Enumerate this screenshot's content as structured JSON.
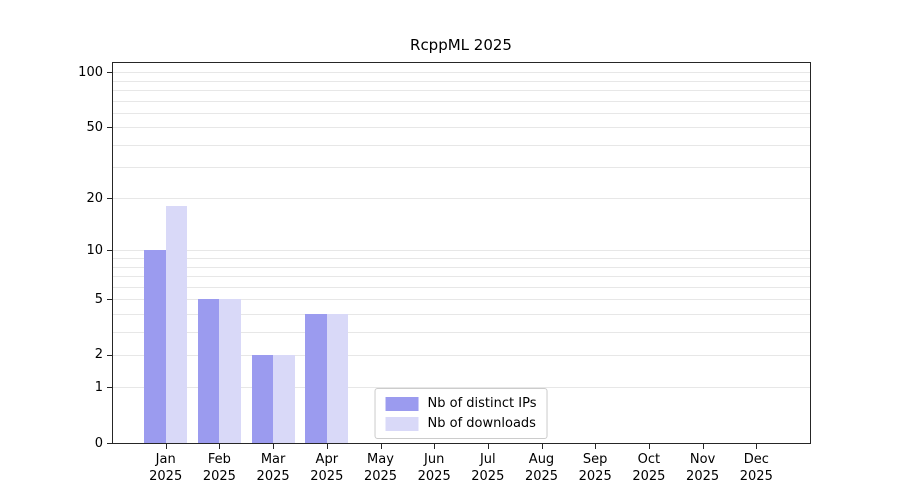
{
  "title": "RcppML 2025",
  "colors": {
    "grid": "#e7e7e7",
    "axis": "#262626",
    "background": "#ffffff",
    "legend_border": "#cccccc"
  },
  "chart_data": {
    "type": "bar",
    "title": "RcppML 2025",
    "categories": [
      "Jan 2025",
      "Feb 2025",
      "Mar 2025",
      "Apr 2025",
      "May 2025",
      "Jun 2025",
      "Jul 2025",
      "Aug 2025",
      "Sep 2025",
      "Oct 2025",
      "Nov 2025",
      "Dec 2025"
    ],
    "series": [
      {
        "name": "Nb of distinct IPs",
        "color": "#9b9bef",
        "values": [
          10,
          5,
          2,
          4,
          0,
          0,
          0,
          0,
          0,
          0,
          0,
          0
        ]
      },
      {
        "name": "Nb of downloads",
        "color": "#d9d9f8",
        "values": [
          18,
          5,
          2,
          4,
          0,
          0,
          0,
          0,
          0,
          0,
          0,
          0
        ]
      }
    ],
    "xlabel": "",
    "ylabel": "",
    "yscale": "log1p",
    "ylim": [
      0,
      114
    ],
    "y_ticks": [
      0,
      1,
      2,
      5,
      10,
      20,
      50,
      100
    ],
    "y_grid_values": [
      1,
      2,
      3,
      4,
      5,
      6,
      7,
      8,
      9,
      10,
      20,
      30,
      40,
      50,
      60,
      70,
      80,
      90,
      100
    ],
    "grid": true,
    "legend_position": "lower center"
  }
}
